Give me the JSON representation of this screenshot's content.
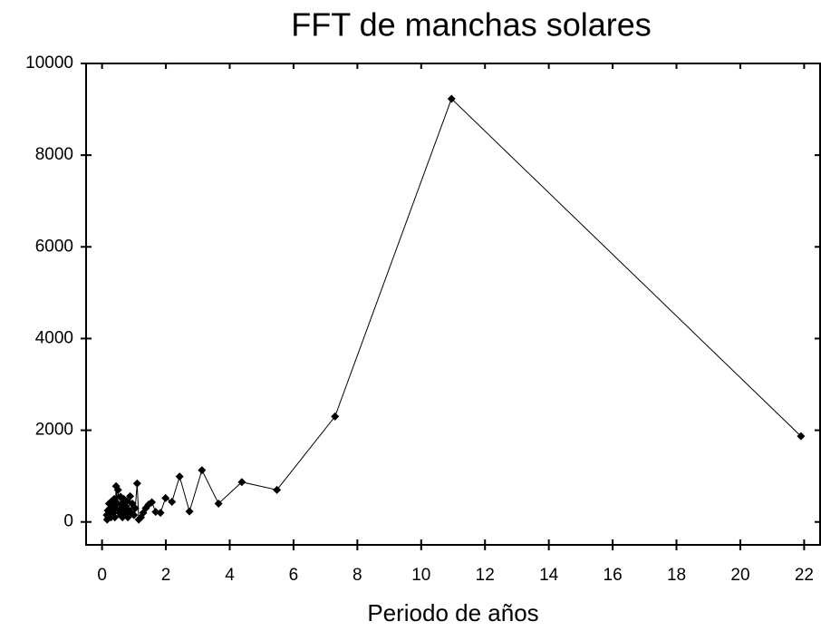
{
  "chart_data": {
    "type": "line",
    "title": "FFT de manchas solares",
    "x_label": "Periodo de años",
    "xlim": [
      -0.5,
      22.5
    ],
    "xticks": [
      0,
      2,
      4,
      6,
      8,
      10,
      12,
      14,
      16,
      18,
      20,
      22
    ],
    "ylim": [
      -500,
      10000
    ],
    "yticks": [
      0,
      2000,
      4000,
      6000,
      8000,
      10000
    ],
    "series": [
      {
        "name": "FFT",
        "color": "#000000",
        "x": [
          21.9,
          10.95,
          7.3,
          5.48,
          4.38,
          3.65,
          3.13,
          2.74,
          2.43,
          2.19,
          1.99,
          1.83,
          1.68,
          1.56,
          1.46,
          1.37,
          1.29,
          1.22,
          1.15,
          1.1,
          1.04,
          1.0,
          0.95,
          0.91,
          0.88,
          0.84,
          0.81,
          0.78,
          0.76,
          0.73,
          0.71,
          0.68,
          0.66,
          0.64,
          0.63,
          0.61,
          0.59,
          0.58,
          0.56,
          0.55,
          0.5,
          0.47,
          0.44,
          0.42,
          0.4,
          0.38,
          0.36,
          0.34,
          0.32,
          0.3,
          0.28,
          0.26,
          0.24,
          0.22,
          0.2,
          0.18,
          0.16,
          0.15
        ],
        "values": [
          1870,
          9230,
          2300,
          700,
          870,
          400,
          1130,
          230,
          990,
          440,
          520,
          200,
          220,
          430,
          380,
          300,
          200,
          100,
          50,
          840,
          300,
          150,
          400,
          200,
          560,
          250,
          100,
          450,
          200,
          350,
          150,
          500,
          250,
          100,
          400,
          300,
          150,
          550,
          250,
          200,
          700,
          400,
          780,
          300,
          100,
          500,
          200,
          350,
          150,
          450,
          100,
          300,
          200,
          400,
          100,
          250,
          50,
          150
        ]
      }
    ]
  }
}
